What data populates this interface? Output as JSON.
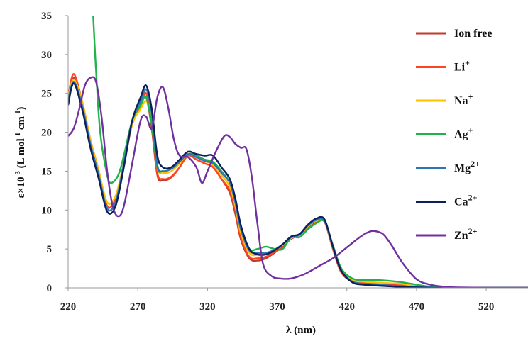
{
  "chart_data": {
    "type": "line",
    "xlabel": "λ (nm)",
    "ylabel": "ε×10-3 (L mol-1 cm-1)",
    "xlim": [
      220,
      550
    ],
    "ylim": [
      0,
      35
    ],
    "x_ticks": [
      220,
      270,
      320,
      370,
      420,
      470,
      520
    ],
    "y_ticks": [
      0,
      5,
      10,
      15,
      20,
      25,
      30,
      35
    ],
    "legend_position": "right",
    "grid": false,
    "series": [
      {
        "name": "Ion free",
        "color": "#C0392B",
        "x": [
          220,
          224,
          230,
          236,
          242,
          248,
          254,
          260,
          266,
          272,
          276,
          280,
          284,
          288,
          294,
          300,
          306,
          312,
          318,
          324,
          330,
          336,
          340,
          344,
          350,
          356,
          362,
          368,
          374,
          380,
          386,
          392,
          398,
          404,
          410,
          416,
          424,
          432,
          440,
          450,
          460,
          470,
          480,
          490,
          500,
          520,
          550
        ],
        "y": [
          24,
          27,
          24,
          19,
          15,
          10.5,
          11.5,
          16,
          21,
          23.5,
          24.5,
          20.5,
          14.5,
          13.8,
          14.2,
          15.5,
          17,
          16.5,
          16,
          15.5,
          14,
          12.2,
          9.5,
          6.2,
          3.8,
          3.5,
          3.8,
          4.5,
          5.3,
          6.3,
          6.8,
          7.8,
          8.5,
          8.5,
          5,
          2,
          0.8,
          0.5,
          0.4,
          0.3,
          0.2,
          0.1,
          0.05,
          0,
          0,
          0,
          0
        ]
      },
      {
        "name": "Li+",
        "color": "#FF4422",
        "x": [
          220,
          224,
          230,
          236,
          242,
          248,
          254,
          260,
          266,
          272,
          276,
          280,
          284,
          288,
          294,
          300,
          306,
          312,
          318,
          324,
          330,
          336,
          340,
          344,
          350,
          356,
          362,
          368,
          374,
          380,
          386,
          392,
          398,
          404,
          410,
          416,
          424,
          432,
          440,
          450,
          460,
          470,
          480,
          490,
          500,
          520,
          550
        ],
        "y": [
          24.5,
          27.5,
          24,
          19,
          15,
          10.5,
          11.5,
          16,
          21,
          23.5,
          25,
          21,
          14.8,
          14,
          14.3,
          15.5,
          17,
          16.5,
          16,
          15.5,
          14,
          12.5,
          10,
          6.5,
          4,
          3.8,
          4,
          4.6,
          5.4,
          6.4,
          6.8,
          7.9,
          8.6,
          8.5,
          5,
          2,
          0.9,
          0.6,
          0.5,
          0.4,
          0.3,
          0.15,
          0.05,
          0,
          0,
          0,
          0
        ]
      },
      {
        "name": "Na+",
        "color": "#FFC000",
        "x": [
          220,
          224,
          230,
          236,
          242,
          248,
          254,
          260,
          266,
          272,
          276,
          280,
          284,
          288,
          294,
          300,
          306,
          312,
          318,
          324,
          330,
          336,
          340,
          344,
          350,
          356,
          362,
          368,
          374,
          380,
          386,
          392,
          398,
          404,
          410,
          416,
          424,
          432,
          440,
          450,
          460,
          470,
          480,
          490,
          500,
          520,
          550
        ],
        "y": [
          24.5,
          26.8,
          24,
          19,
          15,
          11,
          11.8,
          16,
          21,
          23,
          24,
          22,
          15.5,
          14.8,
          15,
          16,
          17.2,
          16.8,
          16.3,
          15.8,
          14.5,
          13,
          10.5,
          7,
          4.5,
          4.2,
          4.3,
          4.8,
          5.5,
          6.4,
          6.8,
          7.9,
          8.6,
          8.5,
          5.2,
          2.3,
          1,
          0.8,
          0.7,
          0.6,
          0.5,
          0.2,
          0.1,
          0,
          0,
          0,
          0
        ]
      },
      {
        "name": "Ag+",
        "color": "#21B24B",
        "x": [
          238,
          240,
          243,
          248,
          251,
          256,
          260,
          266,
          272,
          276,
          280,
          284,
          288,
          294,
          300,
          306,
          312,
          318,
          324,
          330,
          336,
          340,
          344,
          350,
          356,
          362,
          368,
          374,
          380,
          386,
          392,
          398,
          404,
          410,
          416,
          424,
          432,
          440,
          450,
          460,
          470,
          480,
          490,
          500,
          520,
          550
        ],
        "y": [
          35,
          28,
          20,
          14.5,
          13.5,
          14.5,
          17,
          21.5,
          23.5,
          24.5,
          21,
          15.5,
          15,
          15.3,
          16.2,
          17.2,
          17,
          16.5,
          16.2,
          15,
          13.5,
          11,
          7.5,
          5,
          5,
          5.3,
          5,
          5,
          6.5,
          6.5,
          7.5,
          8.3,
          8.5,
          5.5,
          2.5,
          1.2,
          1,
          1,
          0.9,
          0.7,
          0.4,
          0.15,
          0.05,
          0,
          0,
          0
        ]
      },
      {
        "name": "Mg2+",
        "color": "#2E75B6",
        "x": [
          220,
          224,
          230,
          236,
          242,
          248,
          254,
          260,
          266,
          272,
          276,
          280,
          284,
          288,
          294,
          300,
          306,
          312,
          318,
          324,
          330,
          336,
          340,
          344,
          350,
          356,
          362,
          368,
          374,
          380,
          386,
          392,
          398,
          404,
          410,
          416,
          424,
          432,
          440,
          450,
          460,
          470,
          480,
          490,
          500,
          520,
          550
        ],
        "y": [
          24,
          26.5,
          23.5,
          18.5,
          14.5,
          10.2,
          11,
          16,
          21.5,
          24,
          25.5,
          22.5,
          15.8,
          15,
          15.3,
          16.2,
          17.2,
          16.8,
          16.3,
          16,
          14.8,
          13.5,
          11,
          7.5,
          4.8,
          4.5,
          4.5,
          4.9,
          5.6,
          6.5,
          6.8,
          8,
          8.7,
          8.6,
          5.2,
          2.2,
          0.8,
          0.5,
          0.4,
          0.3,
          0.2,
          0.1,
          0.05,
          0,
          0,
          0,
          0
        ]
      },
      {
        "name": "Ca2+",
        "color": "#0D1F5C",
        "x": [
          220,
          224,
          230,
          236,
          242,
          248,
          254,
          260,
          266,
          272,
          276,
          280,
          284,
          288,
          294,
          300,
          306,
          312,
          318,
          324,
          330,
          336,
          340,
          344,
          350,
          356,
          362,
          368,
          374,
          380,
          386,
          392,
          398,
          404,
          410,
          416,
          424,
          432,
          440,
          450,
          460,
          470,
          480,
          490,
          500,
          520,
          550
        ],
        "y": [
          23.5,
          26.3,
          23,
          18,
          14,
          9.8,
          10.5,
          15.5,
          21.5,
          24.5,
          26,
          23,
          17,
          15.5,
          15.5,
          16.5,
          17.5,
          17.2,
          17,
          17,
          15.5,
          14,
          11.5,
          8,
          5,
          4.3,
          4.3,
          4.8,
          5.6,
          6.6,
          6.9,
          8.1,
          8.9,
          8.8,
          5.3,
          2.2,
          0.7,
          0.4,
          0.3,
          0.2,
          0.1,
          0.05,
          0,
          0,
          0,
          0,
          0
        ]
      },
      {
        "name": "Zn2+",
        "color": "#7030A0",
        "x": [
          220,
          224,
          228,
          232,
          236,
          240,
          244,
          248,
          252,
          256,
          260,
          266,
          272,
          276,
          280,
          284,
          288,
          292,
          296,
          300,
          306,
          312,
          316,
          320,
          326,
          332,
          336,
          340,
          344,
          348,
          352,
          356,
          360,
          366,
          372,
          380,
          390,
          400,
          410,
          420,
          430,
          436,
          440,
          446,
          452,
          460,
          470,
          480,
          490,
          500,
          520,
          550
        ],
        "y": [
          19.5,
          20.5,
          23,
          26,
          27,
          26.5,
          22,
          15,
          10.5,
          9.2,
          10.5,
          16,
          21.5,
          22,
          20.5,
          24.5,
          25.8,
          23,
          19,
          17,
          16.8,
          15.5,
          13.5,
          15,
          17.5,
          19.5,
          19.4,
          18.5,
          18,
          17.8,
          14,
          8,
          3,
          1.5,
          1.2,
          1.2,
          1.8,
          2.8,
          3.8,
          5.2,
          6.6,
          7.2,
          7.3,
          6.9,
          5.5,
          3.2,
          1.1,
          0.4,
          0.15,
          0.05,
          0,
          0
        ]
      }
    ]
  },
  "colors": {
    "axis": "#9a9a9a",
    "text": "#111111"
  }
}
